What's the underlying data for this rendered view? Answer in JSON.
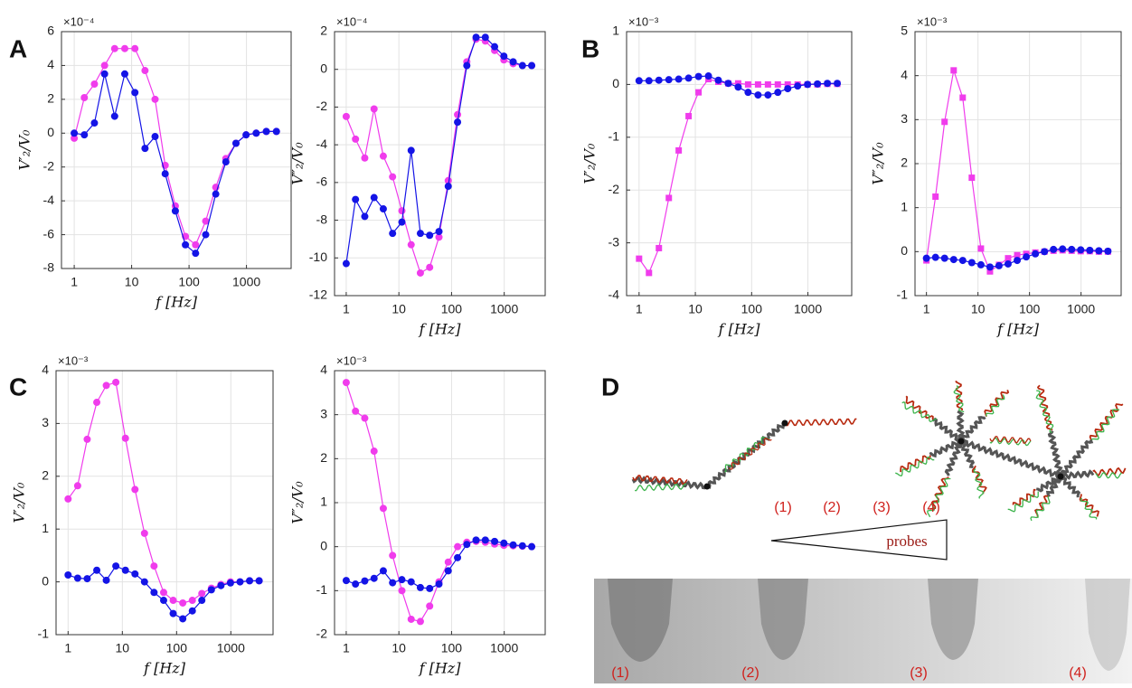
{
  "panel_labels": [
    "A",
    "B",
    "C",
    "D"
  ],
  "chart_data": [
    {
      "type": "line",
      "x_label": "f [Hz]",
      "y_label": "V′₂/V₀",
      "y_exponent": "×10⁻⁴",
      "x_scale": "log",
      "grid": true,
      "x": [
        1,
        1.5,
        2.25,
        3.38,
        5.06,
        7.59,
        11.4,
        17.1,
        25.6,
        38.4,
        57.7,
        86.5,
        130,
        195,
        292,
        438,
        657,
        985,
        1478,
        2217,
        3325
      ],
      "xlim": [
        0.6,
        6000
      ],
      "xticks": [
        1,
        10,
        100,
        1000
      ],
      "ylim": [
        -8,
        6
      ],
      "yticks": [
        -8,
        -6,
        -4,
        -2,
        0,
        2,
        4,
        6
      ],
      "series": [
        {
          "color": "#f03cec",
          "marker": "circle",
          "values": [
            -0.3,
            2.1,
            2.9,
            4.0,
            5.0,
            5.0,
            5.0,
            3.7,
            2.0,
            -1.9,
            -4.3,
            -6.1,
            -6.6,
            -5.2,
            -3.2,
            -1.5,
            -0.6,
            -0.1,
            0.0,
            0.1,
            0.1
          ]
        },
        {
          "color": "#1414e6",
          "marker": "circle",
          "values": [
            0.0,
            -0.1,
            0.6,
            3.5,
            1.0,
            3.5,
            2.4,
            -0.9,
            -0.2,
            -2.4,
            -4.6,
            -6.6,
            -7.1,
            -6.0,
            -3.6,
            -1.7,
            -0.6,
            -0.1,
            0.0,
            0.1,
            0.1
          ]
        }
      ]
    },
    {
      "type": "line",
      "x_label": "f [Hz]",
      "y_label": "V″₂/V₀",
      "y_exponent": "×10⁻⁴",
      "x_scale": "log",
      "grid": true,
      "x": [
        1,
        1.5,
        2.25,
        3.38,
        5.06,
        7.59,
        11.4,
        17.1,
        25.6,
        38.4,
        57.7,
        86.5,
        130,
        195,
        292,
        438,
        657,
        985,
        1478,
        2217,
        3325
      ],
      "xlim": [
        0.6,
        6000
      ],
      "xticks": [
        1,
        10,
        100,
        1000
      ],
      "ylim": [
        -12,
        2
      ],
      "yticks": [
        -12,
        -10,
        -8,
        -6,
        -4,
        -2,
        0,
        2
      ],
      "series": [
        {
          "color": "#f03cec",
          "marker": "circle",
          "values": [
            -2.5,
            -3.7,
            -4.7,
            -2.1,
            -4.6,
            -5.7,
            -7.5,
            -9.3,
            -10.8,
            -10.5,
            -8.9,
            -5.9,
            -2.4,
            0.4,
            1.6,
            1.5,
            1.0,
            0.5,
            0.3,
            0.2,
            0.2
          ]
        },
        {
          "color": "#1414e6",
          "marker": "circle",
          "values": [
            -10.3,
            -6.9,
            -7.8,
            -6.8,
            -7.4,
            -8.7,
            -8.1,
            -4.3,
            -8.7,
            -8.8,
            -8.6,
            -6.2,
            -2.8,
            0.2,
            1.7,
            1.7,
            1.2,
            0.7,
            0.4,
            0.2,
            0.2
          ]
        }
      ]
    },
    {
      "type": "line",
      "x_label": "f [Hz]",
      "y_label": "V′₂/V₀",
      "y_exponent": "×10⁻³",
      "x_scale": "log",
      "grid": true,
      "x": [
        1,
        1.5,
        2.25,
        3.38,
        5.06,
        7.59,
        11.4,
        17.1,
        25.6,
        38.4,
        57.7,
        86.5,
        130,
        195,
        292,
        438,
        657,
        985,
        1478,
        2217,
        3325
      ],
      "xlim": [
        0.6,
        6000
      ],
      "xticks": [
        1,
        10,
        100,
        1000
      ],
      "ylim": [
        -4,
        1
      ],
      "yticks": [
        -4,
        -3,
        -2,
        -1,
        0,
        1
      ],
      "series": [
        {
          "color": "#f03cec",
          "marker": "square",
          "values": [
            -3.3,
            -3.57,
            -3.1,
            -2.15,
            -1.25,
            -0.6,
            -0.15,
            0.1,
            0.05,
            0.02,
            0.02,
            0.0,
            0.0,
            0.0,
            0.0,
            0.0,
            0.0,
            0.0,
            0.0,
            0.01,
            0.01
          ]
        },
        {
          "color": "#1414e6",
          "marker": "circle",
          "values": [
            0.07,
            0.07,
            0.08,
            0.09,
            0.1,
            0.12,
            0.15,
            0.16,
            0.08,
            0.02,
            -0.05,
            -0.15,
            -0.2,
            -0.2,
            -0.15,
            -0.08,
            -0.03,
            0.0,
            0.01,
            0.02,
            0.02
          ]
        }
      ]
    },
    {
      "type": "line",
      "x_label": "f [Hz]",
      "y_label": "V″₂/V₀",
      "y_exponent": "×10⁻³",
      "x_scale": "log",
      "grid": true,
      "x": [
        1,
        1.5,
        2.25,
        3.38,
        5.06,
        7.59,
        11.4,
        17.1,
        25.6,
        38.4,
        57.7,
        86.5,
        130,
        195,
        292,
        438,
        657,
        985,
        1478,
        2217,
        3325
      ],
      "xlim": [
        0.6,
        6000
      ],
      "xticks": [
        1,
        10,
        100,
        1000
      ],
      "ylim": [
        -1,
        5
      ],
      "yticks": [
        -1,
        0,
        1,
        2,
        3,
        4,
        5
      ],
      "series": [
        {
          "color": "#f03cec",
          "marker": "square",
          "values": [
            -0.2,
            1.25,
            2.95,
            4.12,
            3.5,
            1.68,
            0.07,
            -0.45,
            -0.3,
            -0.15,
            -0.08,
            -0.05,
            -0.02,
            0.0,
            0.02,
            0.03,
            0.02,
            0.01,
            0.01,
            0.0,
            0.0
          ]
        },
        {
          "color": "#1414e6",
          "marker": "circle",
          "values": [
            -0.15,
            -0.13,
            -0.15,
            -0.18,
            -0.2,
            -0.25,
            -0.3,
            -0.35,
            -0.32,
            -0.28,
            -0.2,
            -0.12,
            -0.05,
            0.0,
            0.05,
            0.06,
            0.05,
            0.04,
            0.03,
            0.02,
            0.01
          ]
        }
      ]
    },
    {
      "type": "line",
      "x_label": "f [Hz]",
      "y_label": "V′₂/V₀",
      "y_exponent": "×10⁻³",
      "x_scale": "log",
      "grid": true,
      "x": [
        1,
        1.5,
        2.25,
        3.38,
        5.06,
        7.59,
        11.4,
        17.1,
        25.6,
        38.4,
        57.7,
        86.5,
        130,
        195,
        292,
        438,
        657,
        985,
        1478,
        2217,
        3325
      ],
      "xlim": [
        0.6,
        6000
      ],
      "xticks": [
        1,
        10,
        100,
        1000
      ],
      "ylim": [
        -1,
        4
      ],
      "yticks": [
        -1,
        0,
        1,
        2,
        3,
        4
      ],
      "series": [
        {
          "color": "#f03cec",
          "marker": "circle",
          "values": [
            1.57,
            1.82,
            2.7,
            3.4,
            3.72,
            3.78,
            2.72,
            1.75,
            0.92,
            0.3,
            -0.2,
            -0.35,
            -0.4,
            -0.35,
            -0.22,
            -0.12,
            -0.05,
            0.0,
            0.0,
            0.02,
            0.02
          ]
        },
        {
          "color": "#1414e6",
          "marker": "circle",
          "values": [
            0.13,
            0.07,
            0.06,
            0.22,
            0.03,
            0.3,
            0.22,
            0.15,
            0.0,
            -0.2,
            -0.35,
            -0.6,
            -0.7,
            -0.55,
            -0.35,
            -0.15,
            -0.07,
            -0.02,
            0.0,
            0.02,
            0.02
          ]
        }
      ]
    },
    {
      "type": "line",
      "x_label": "f [Hz]",
      "y_label": "V″₂/V₀",
      "y_exponent": "×10⁻³",
      "x_scale": "log",
      "grid": true,
      "x": [
        1,
        1.5,
        2.25,
        3.38,
        5.06,
        7.59,
        11.4,
        17.1,
        25.6,
        38.4,
        57.7,
        86.5,
        130,
        195,
        292,
        438,
        657,
        985,
        1478,
        2217,
        3325
      ],
      "xlim": [
        0.6,
        6000
      ],
      "xticks": [
        1,
        10,
        100,
        1000
      ],
      "ylim": [
        -2,
        4
      ],
      "yticks": [
        -2,
        -1,
        0,
        1,
        2,
        3,
        4
      ],
      "series": [
        {
          "color": "#f03cec",
          "marker": "circle",
          "values": [
            3.73,
            3.08,
            2.92,
            2.17,
            0.87,
            -0.2,
            -1.0,
            -1.65,
            -1.7,
            -1.35,
            -0.8,
            -0.35,
            0.0,
            0.1,
            0.12,
            0.1,
            0.06,
            0.03,
            0.02,
            0.01,
            0.0
          ]
        },
        {
          "color": "#1414e6",
          "marker": "circle",
          "values": [
            -0.77,
            -0.85,
            -0.78,
            -0.72,
            -0.55,
            -0.82,
            -0.75,
            -0.8,
            -0.93,
            -0.95,
            -0.85,
            -0.55,
            -0.25,
            0.05,
            0.15,
            0.15,
            0.12,
            0.08,
            0.04,
            0.02,
            0.0
          ]
        }
      ]
    }
  ],
  "diagram": {
    "number_labels": [
      "(1)",
      "(2)",
      "(3)",
      "(4)"
    ],
    "wedge_label": "probes",
    "photo_labels": [
      "(1)",
      "(2)",
      "(3)",
      "(4)"
    ]
  }
}
